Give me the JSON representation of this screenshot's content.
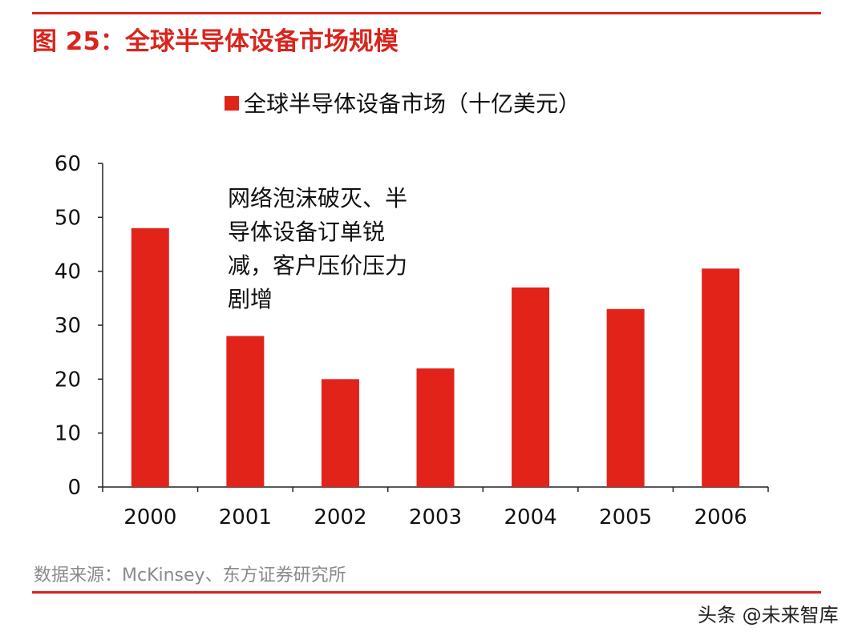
{
  "figure": {
    "title": "图 25：全球半导体设备市场规模",
    "source": "数据来源：McKinsey、东方证券研究所"
  },
  "watermark": {
    "text": "头条 @未来智库",
    "faded_text": "未来智库"
  },
  "colors": {
    "accent": "#d9251d",
    "bar": "#e2231a",
    "axis": "#222222",
    "source_text": "#8a8a8a"
  },
  "chart_data": {
    "type": "bar",
    "title": "",
    "legend": {
      "label": "全球半导体设备市场（十亿美元）",
      "placement": "top"
    },
    "categories": [
      "2000",
      "2001",
      "2002",
      "2003",
      "2004",
      "2005",
      "2006"
    ],
    "series": [
      {
        "name": "全球半导体设备市场（十亿美元）",
        "values": [
          48,
          28,
          20,
          22,
          37,
          33,
          40.5
        ]
      }
    ],
    "ylim": [
      0,
      60
    ],
    "yticks": [
      0,
      10,
      20,
      30,
      40,
      50,
      60
    ],
    "xlabel": "",
    "ylabel": "",
    "grid": false,
    "annotation": {
      "lines": [
        "网络泡沫破灭、半",
        "导体设备订单锐",
        "减，客户压价压力",
        "剧增"
      ]
    }
  }
}
